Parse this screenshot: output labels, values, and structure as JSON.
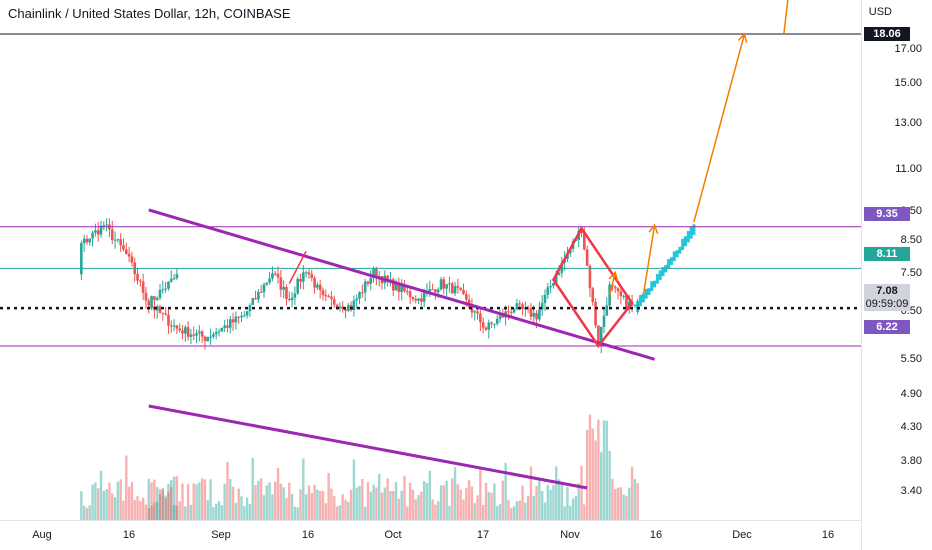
{
  "title": "Chainlink / United States Dollar, 12h, COINBASE",
  "currency": "USD",
  "price_axis": [
    "17.00",
    "15.00",
    "13.00",
    "11.00",
    "9.50",
    "8.50",
    "7.50",
    "6.50",
    "5.50",
    "4.90",
    "4.30",
    "3.80",
    "3.40"
  ],
  "badges": {
    "top": "18.06",
    "upper": "9.35",
    "mid": "8.11",
    "last": "7.08",
    "countdown": "09:59:09",
    "low": "6.22"
  },
  "time_axis": [
    "Aug",
    "16",
    "Sep",
    "16",
    "Oct",
    "17",
    "Nov",
    "16",
    "Dec",
    "16"
  ],
  "colors": {
    "up": "#26a69a",
    "down": "#ef5350",
    "purple": "#9c27b0",
    "diamond": "#f23645",
    "projection": "#f57c00",
    "ghost_bars": "#00bcd4",
    "teal_line": "#26a69a"
  },
  "chart_data": {
    "type": "candlestick",
    "title": "Chainlink / United States Dollar, 12h, COINBASE",
    "symbol": "LINK/USD",
    "exchange": "COINBASE",
    "interval": "12h",
    "y_scale": "log",
    "price_ylim": [
      5.2,
      19.0
    ],
    "horizontal_levels": [
      18.06,
      9.35,
      8.11,
      6.22
    ],
    "last_price": 7.08,
    "anchors": [
      {
        "date": "Jul 26",
        "price": 7.2
      },
      {
        "date": "Jul 31",
        "price": 7.9
      },
      {
        "date": "Aug 8",
        "price": 8.8
      },
      {
        "date": "Aug 12",
        "price": 9.4
      },
      {
        "date": "Aug 16",
        "price": 8.5
      },
      {
        "date": "Aug 20",
        "price": 7.2
      },
      {
        "date": "Aug 25",
        "price": 6.6
      },
      {
        "date": "Aug 30",
        "price": 6.4
      },
      {
        "date": "Sep 6",
        "price": 6.9
      },
      {
        "date": "Sep 11",
        "price": 8.0
      },
      {
        "date": "Sep 14",
        "price": 7.3
      },
      {
        "date": "Sep 17",
        "price": 8.1
      },
      {
        "date": "Sep 20",
        "price": 7.3
      },
      {
        "date": "Sep 25",
        "price": 7.1
      },
      {
        "date": "Sep 29",
        "price": 8.0
      },
      {
        "date": "Oct 3",
        "price": 7.6
      },
      {
        "date": "Oct 7",
        "price": 7.3
      },
      {
        "date": "Oct 11",
        "price": 7.7
      },
      {
        "date": "Oct 14",
        "price": 7.5
      },
      {
        "date": "Oct 19",
        "price": 6.6
      },
      {
        "date": "Oct 24",
        "price": 7.1
      },
      {
        "date": "Oct 28",
        "price": 6.9
      },
      {
        "date": "Oct 31",
        "price": 7.8
      },
      {
        "date": "Nov 5",
        "price": 9.3
      },
      {
        "date": "Nov 8",
        "price": 6.3
      },
      {
        "date": "Nov 10",
        "price": 7.6
      },
      {
        "date": "Nov 13",
        "price": 7.2
      },
      {
        "date": "Nov 15",
        "price": 7.08
      }
    ],
    "volume_axis": [
      4.9,
      4.3,
      3.8,
      3.4
    ]
  }
}
